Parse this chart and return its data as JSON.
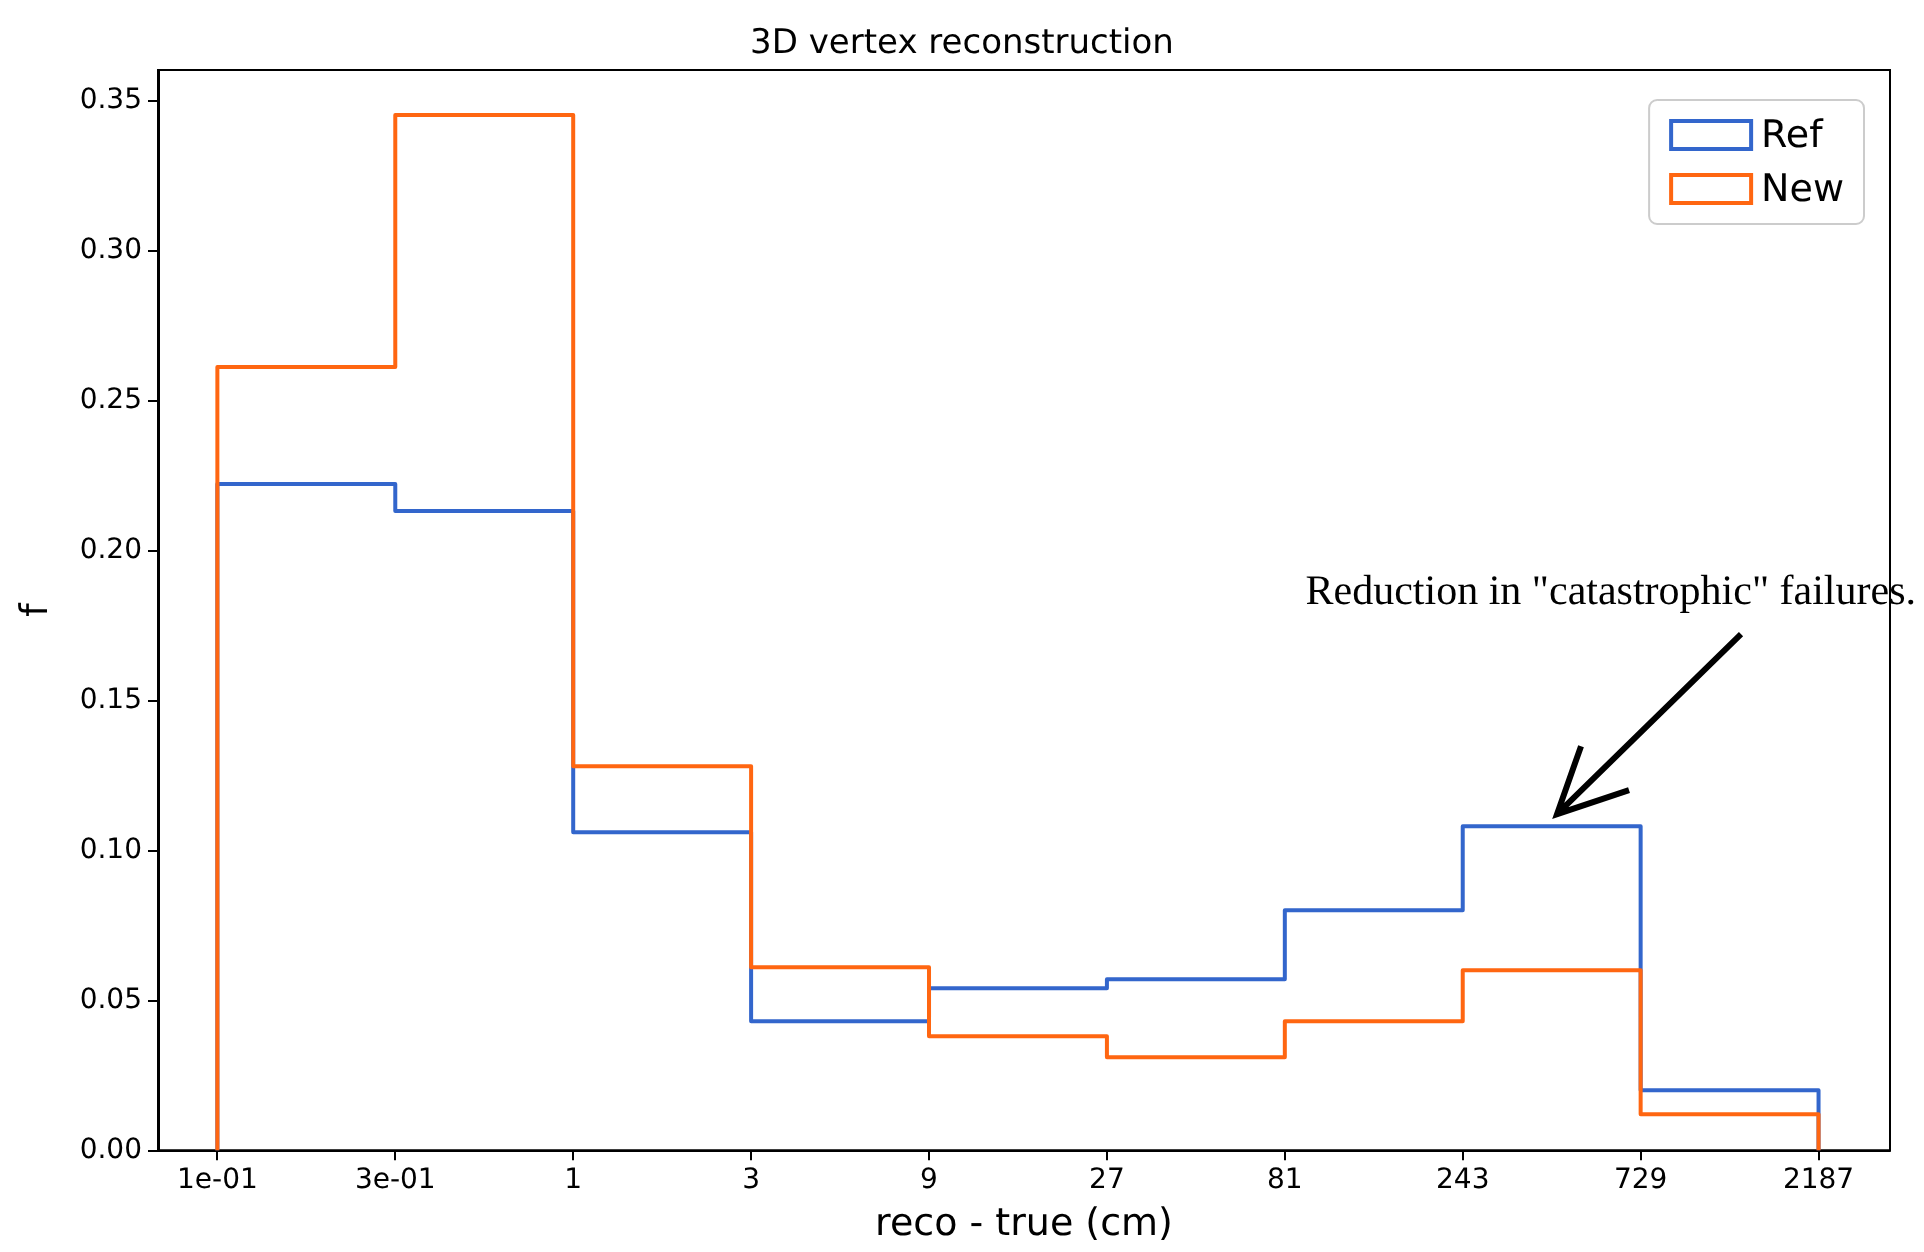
{
  "chart_data": {
    "type": "histogram",
    "title": "3D vertex reconstruction",
    "xlabel": "reco - true (cm)",
    "ylabel": "f",
    "bins": [
      0.1111,
      0.3333,
      1,
      3,
      9,
      27,
      81,
      243,
      729,
      2187
    ],
    "series": [
      {
        "name": "Ref",
        "color": "#3366cc",
        "values": [
          0.222,
          0.213,
          0.106,
          0.043,
          0.054,
          0.057,
          0.08,
          0.108,
          0.02
        ]
      },
      {
        "name": "New",
        "color": "#ff6611",
        "values": [
          0.261,
          0.345,
          0.128,
          0.061,
          0.038,
          0.031,
          0.043,
          0.06,
          0.012
        ]
      }
    ],
    "log": "x",
    "xlim": [
      0.077,
      3400
    ],
    "xticks": [
      {
        "value": 0.1111,
        "label": "1e-01"
      },
      {
        "value": 0.3333,
        "label": "3e-01"
      },
      1,
      3,
      9,
      27,
      81,
      243,
      729,
      2187
    ],
    "ylim": [
      0,
      0.36
    ],
    "yticks": [
      {
        "value": 0,
        "label": "0.00"
      },
      {
        "value": 0.05,
        "label": "0.05"
      },
      {
        "value": 0.1,
        "label": "0.10"
      },
      {
        "value": 0.15,
        "label": "0.15"
      },
      {
        "value": 0.2,
        "label": "0.20"
      },
      {
        "value": 0.25,
        "label": "0.25"
      },
      {
        "value": 0.3,
        "label": "0.30"
      },
      {
        "value": 0.35,
        "label": "0.35"
      }
    ],
    "grid": false,
    "legend": "top right",
    "annotations": [
      {
        "text": "Reduction in \"catastrophic\" failures.",
        "x": 435,
        "y": 0.112
      }
    ]
  }
}
